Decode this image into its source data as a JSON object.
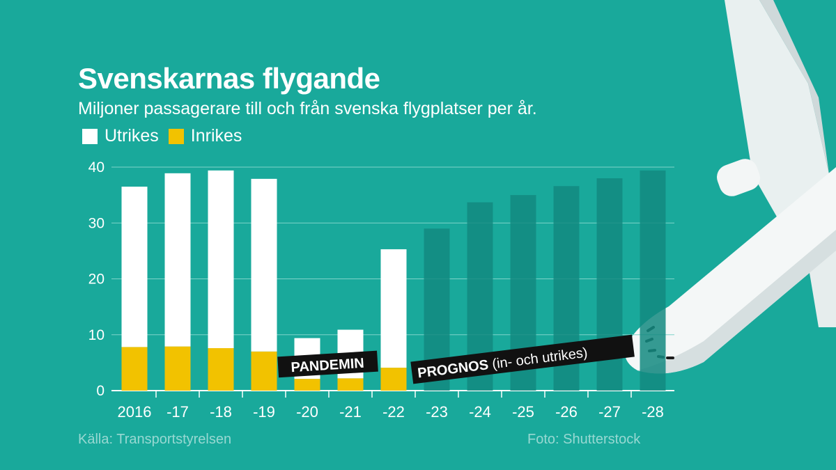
{
  "title": "Svenskarnas flygande",
  "subtitle": "Miljoner passagerare till och från svenska flygplatser per år.",
  "legend": [
    {
      "label": "Utrikes",
      "color": "#ffffff"
    },
    {
      "label": "Inrikes",
      "color": "#f2c200"
    }
  ],
  "source": "Källa: Transportstyrelsen",
  "photo_credit": "Foto: Shutterstock",
  "colors": {
    "background": "#19a99b",
    "utrikes": "#ffffff",
    "inrikes": "#f2c200",
    "prognos": "#138a80",
    "grid": "#7fd3ca"
  },
  "chart_data": {
    "type": "bar",
    "stacked": true,
    "categories": [
      "2016",
      "-17",
      "-18",
      "-19",
      "-20",
      "-21",
      "-22",
      "-23",
      "-24",
      "-25",
      "-26",
      "-27",
      "-28"
    ],
    "series": [
      {
        "name": "Inrikes",
        "values": [
          7.8,
          7.9,
          7.6,
          7.0,
          2.1,
          2.2,
          4.1,
          null,
          null,
          null,
          null,
          null,
          null
        ]
      },
      {
        "name": "Utrikes",
        "values": [
          28.7,
          31.0,
          31.8,
          30.9,
          7.3,
          8.7,
          21.2,
          null,
          null,
          null,
          null,
          null,
          null
        ]
      },
      {
        "name": "",
        "values": [
          null,
          null,
          null,
          null,
          null,
          null,
          null,
          29.0,
          33.7,
          35.0,
          36.6,
          38.0,
          39.4
        ]
      }
    ],
    "ylim": [
      0,
      40
    ],
    "yticks": [
      0,
      10,
      20,
      30,
      40
    ],
    "grid": true,
    "annotations": [
      {
        "text": "PANDEMIN"
      },
      {
        "text_bold": "PROGNOS",
        "text_light": " (in- och utrikes)"
      }
    ]
  }
}
